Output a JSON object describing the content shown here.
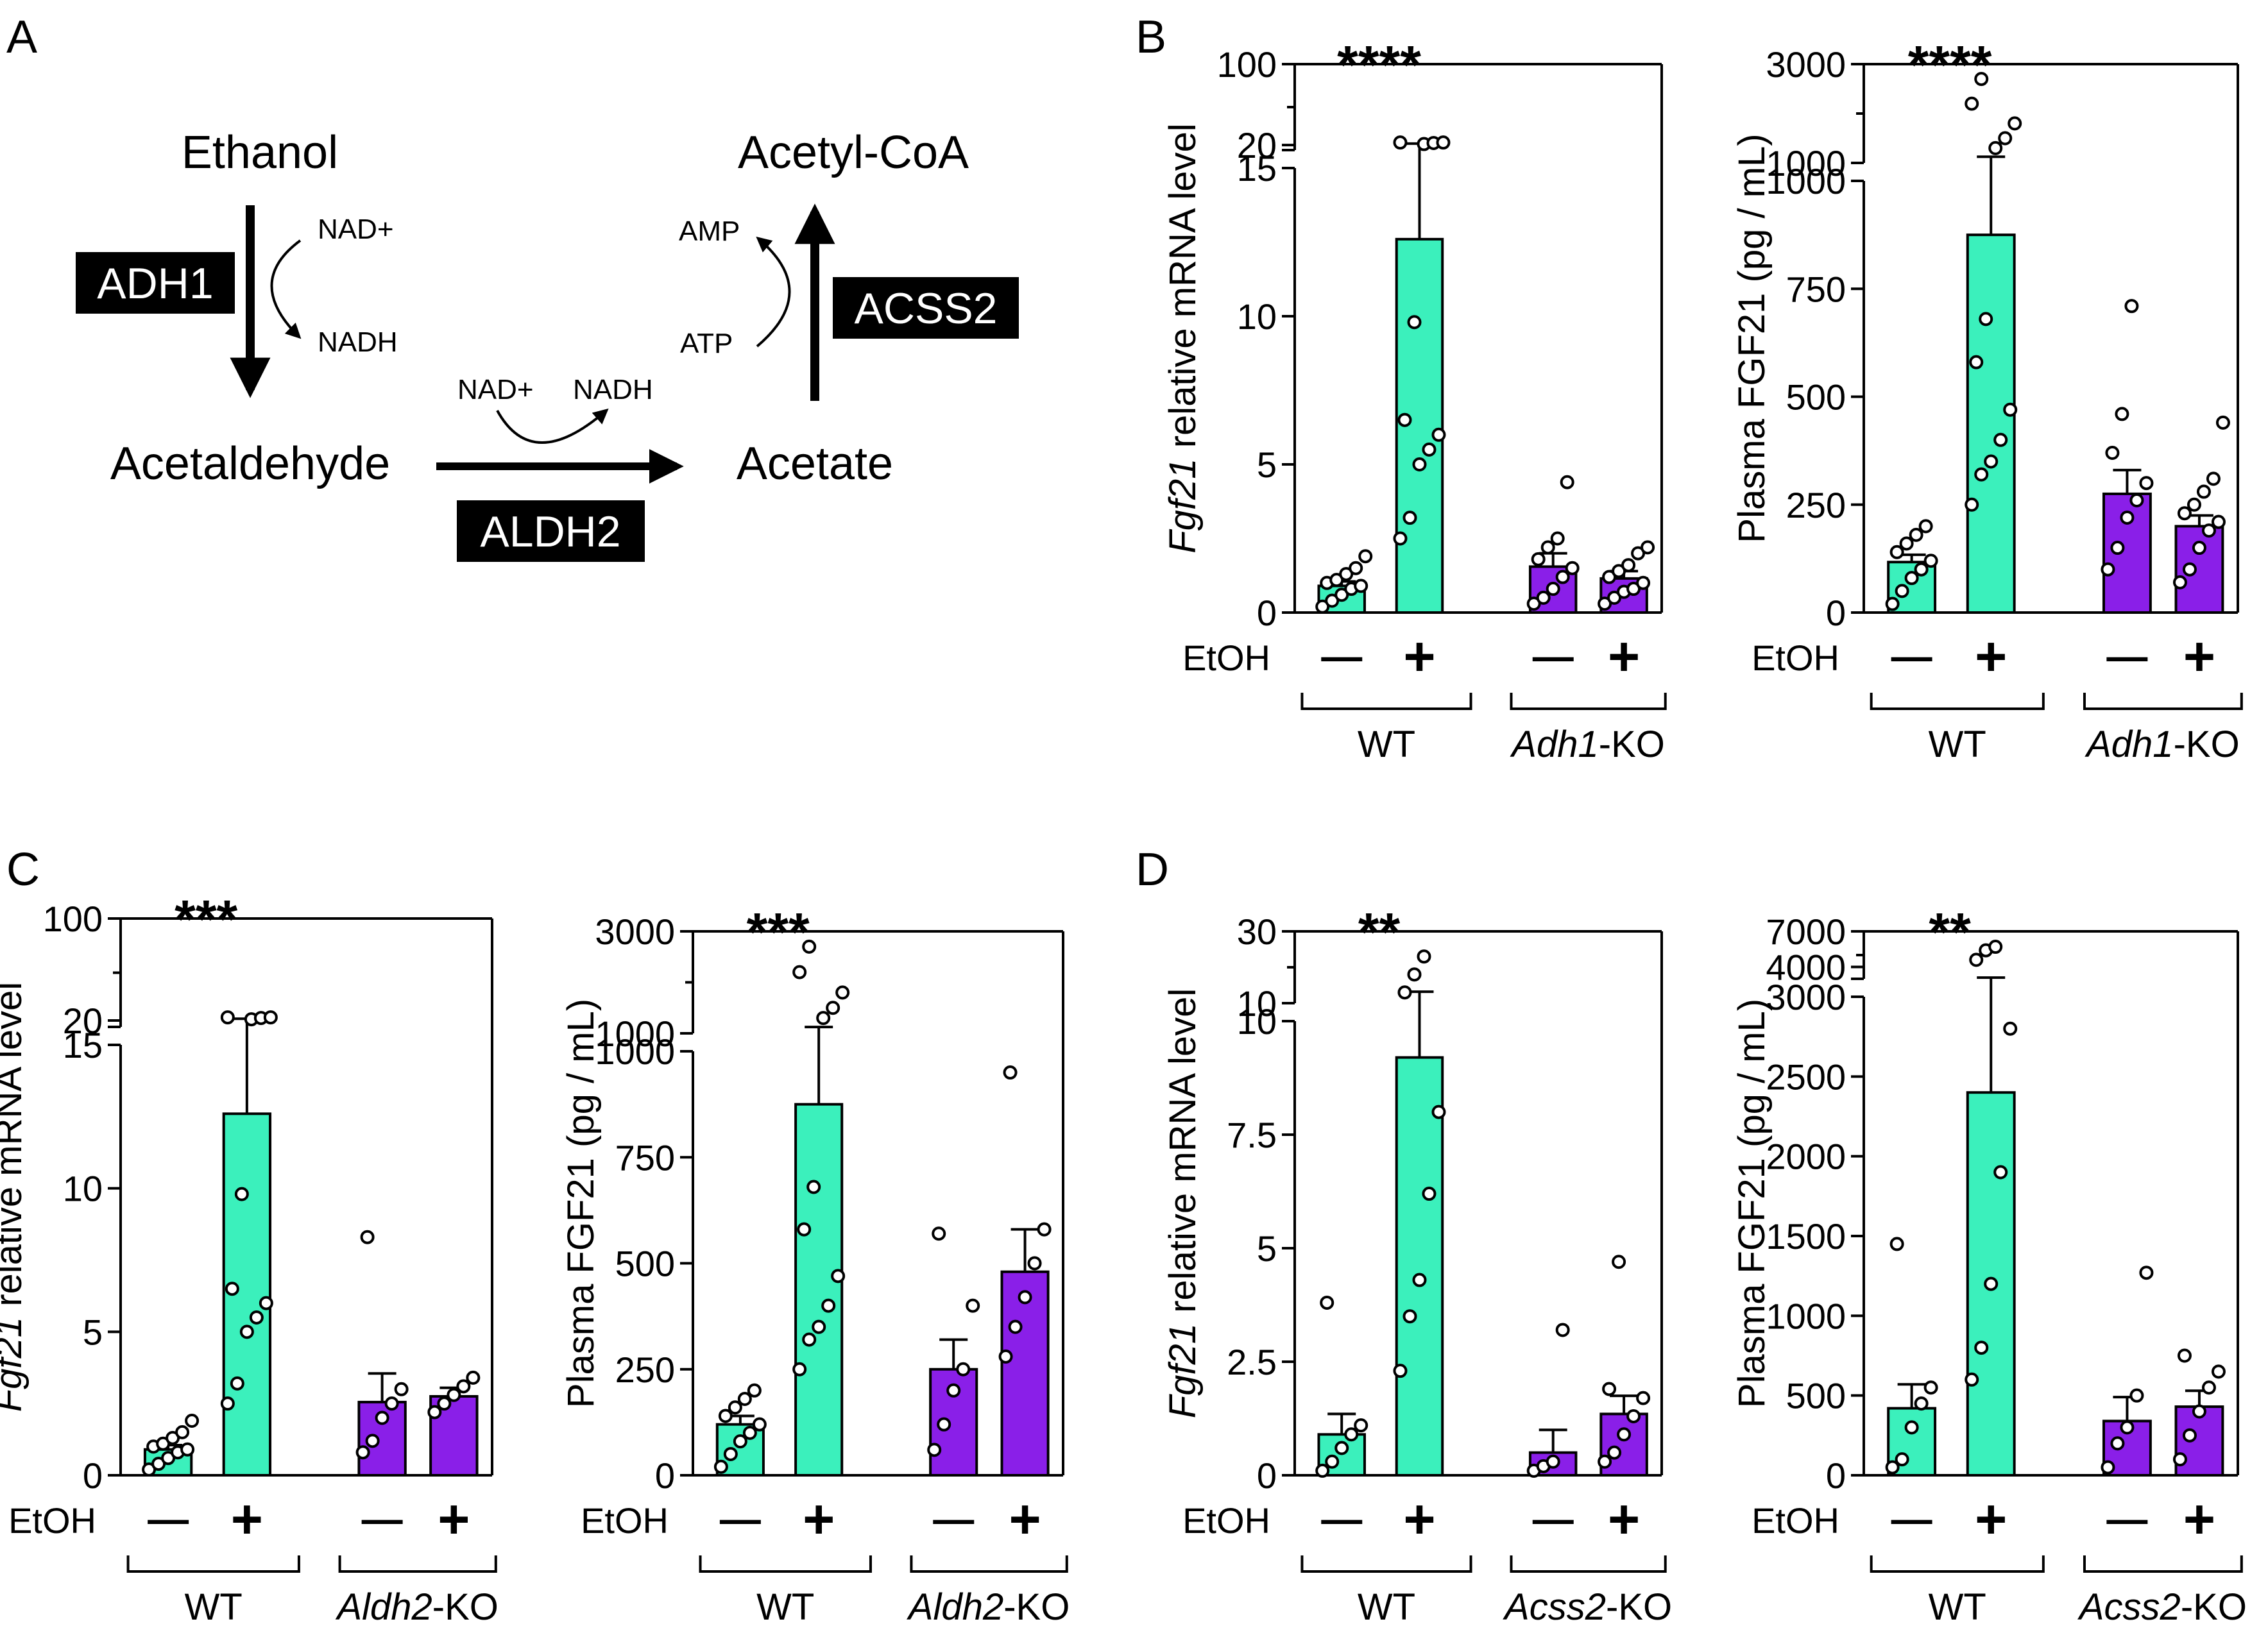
{
  "panel_labels": [
    "A",
    "B",
    "C",
    "D"
  ],
  "pathway": {
    "ethanol": "Ethanol",
    "acetaldehyde": "Acetaldehyde",
    "acetate": "Acetate",
    "acetyl_coa": "Acetyl-CoA",
    "adh1": "ADH1",
    "aldh2": "ALDH2",
    "acss2": "ACSS2",
    "nad_plus": "NAD+",
    "nadh": "NADH",
    "amp": "AMP",
    "atp": "ATP"
  },
  "labels": {
    "etoh": "EtOH",
    "minus": "—",
    "plus": "+",
    "wt": "WT",
    "ko_suffix": "-KO",
    "fgf21_italic": "Fgf21",
    "mrna_suffix": " relative mRNA level",
    "plasma_ylabel": "Plasma FGF21 (pg / mL)"
  },
  "colors": {
    "wt_bar": "#3BF0BC",
    "ko_bar": "#8A1FE8",
    "point_fill": "#ffffff",
    "line": "#000000"
  },
  "chart_data": [
    {
      "id": "B-mrna",
      "panel": "B",
      "type": "bar",
      "ko_gene": "Adh1",
      "ylabel": "Fgf21 relative mRNA level",
      "significance": "****",
      "categories": [
        "WT −",
        "WT +",
        "Adh1-KO −",
        "Adh1-KO +"
      ],
      "values": [
        0.9,
        12.6,
        1.55,
        1.15
      ],
      "errors": [
        0.15,
        8.8,
        0.45,
        0.25
      ],
      "points": [
        [
          0.2,
          0.4,
          0.6,
          0.8,
          0.9,
          1.0,
          1.1,
          1.3,
          1.5,
          1.9
        ],
        [
          2.5,
          3.2,
          5,
          5.5,
          6,
          6.5,
          9.8,
          21,
          22,
          22.5,
          22.5
        ],
        [
          0.3,
          0.5,
          0.8,
          1.2,
          1.5,
          1.8,
          2.2,
          2.5,
          4.4
        ],
        [
          0.3,
          0.5,
          0.7,
          0.8,
          1.0,
          1.2,
          1.4,
          1.6,
          2.0,
          2.2
        ]
      ],
      "axis": {
        "lower": [
          0,
          15
        ],
        "upper": [
          15,
          100
        ],
        "lower_ticks": [
          "0",
          "5",
          "10",
          "15"
        ],
        "upper_ticks": [
          "20",
          "100"
        ]
      }
    },
    {
      "id": "B-plasma",
      "panel": "B",
      "type": "bar",
      "ko_gene": "Adh1",
      "ylabel": "Plasma FGF21 (pg / mL)",
      "significance": "****",
      "categories": [
        "WT −",
        "WT +",
        "Adh1-KO −",
        "Adh1-KO +"
      ],
      "values": [
        117,
        875,
        275,
        200
      ],
      "errors": [
        17,
        250,
        55,
        25
      ],
      "points": [
        [
          20,
          50,
          80,
          100,
          120,
          140,
          160,
          180,
          200
        ],
        [
          250,
          320,
          350,
          400,
          470,
          580,
          680,
          1300,
          1500,
          1800,
          2200,
          2700
        ],
        [
          100,
          150,
          220,
          260,
          300,
          370,
          460,
          710
        ],
        [
          70,
          100,
          150,
          190,
          210,
          230,
          250,
          280,
          310,
          440
        ]
      ],
      "axis": {
        "lower": [
          0,
          1000
        ],
        "upper": [
          1000,
          3000
        ],
        "lower_ticks": [
          "0",
          "250",
          "500",
          "750",
          "1000"
        ],
        "upper_ticks": [
          "1000",
          "3000"
        ]
      }
    },
    {
      "id": "C-mrna",
      "panel": "C",
      "type": "bar",
      "ko_gene": "Aldh2",
      "ylabel": "Fgf21 relative mRNA level",
      "significance": "***",
      "categories": [
        "WT −",
        "WT +",
        "Aldh2-KO −",
        "Aldh2-KO +"
      ],
      "values": [
        0.9,
        12.6,
        2.55,
        2.75
      ],
      "errors": [
        0.15,
        8.8,
        1.0,
        0.3
      ],
      "points": [
        [
          0.2,
          0.4,
          0.6,
          0.8,
          0.9,
          1.0,
          1.1,
          1.3,
          1.5,
          1.9
        ],
        [
          2.5,
          3.2,
          5,
          5.5,
          6,
          6.5,
          9.8,
          21,
          22,
          22.5,
          22.5
        ],
        [
          0.8,
          1.2,
          2.0,
          2.5,
          3.0,
          8.3
        ],
        [
          2.2,
          2.5,
          2.8,
          3.1,
          3.4
        ]
      ],
      "axis": {
        "lower": [
          0,
          15
        ],
        "upper": [
          15,
          100
        ],
        "lower_ticks": [
          "0",
          "5",
          "10",
          "15"
        ],
        "upper_ticks": [
          "20",
          "100"
        ]
      }
    },
    {
      "id": "C-plasma",
      "panel": "C",
      "type": "bar",
      "ko_gene": "Aldh2",
      "ylabel": "Plasma FGF21 (pg / mL)",
      "significance": "***",
      "categories": [
        "WT −",
        "WT +",
        "Aldh2-KO −",
        "Aldh2-KO +"
      ],
      "values": [
        120,
        875,
        250,
        480
      ],
      "errors": [
        20,
        250,
        70,
        100
      ],
      "points": [
        [
          20,
          50,
          80,
          100,
          120,
          140,
          160,
          180,
          200
        ],
        [
          250,
          320,
          350,
          400,
          470,
          580,
          680,
          1300,
          1500,
          1800,
          2200,
          2700
        ],
        [
          60,
          120,
          200,
          250,
          400,
          570
        ],
        [
          280,
          350,
          420,
          500,
          580,
          950
        ]
      ],
      "axis": {
        "lower": [
          0,
          1000
        ],
        "upper": [
          1000,
          3000
        ],
        "lower_ticks": [
          "0",
          "250",
          "500",
          "750",
          "1000"
        ],
        "upper_ticks": [
          "1000",
          "3000"
        ]
      }
    },
    {
      "id": "D-mrna",
      "panel": "D",
      "type": "bar",
      "ko_gene": "Acss2",
      "ylabel": "Fgf21 relative mRNA level",
      "significance": "**",
      "categories": [
        "WT −",
        "WT +",
        "Acss2-KO −",
        "Acss2-KO +"
      ],
      "values": [
        0.9,
        9.2,
        0.5,
        1.35
      ],
      "errors": [
        0.45,
        4.0,
        0.5,
        0.4
      ],
      "points": [
        [
          0.1,
          0.3,
          0.6,
          0.9,
          1.1,
          3.8
        ],
        [
          2.3,
          3.5,
          4.3,
          6.2,
          8.0,
          13,
          18,
          23
        ],
        [
          0.1,
          0.2,
          0.3,
          3.2
        ],
        [
          0.3,
          0.5,
          0.9,
          1.3,
          1.7,
          1.9,
          4.7
        ]
      ],
      "axis": {
        "lower": [
          0,
          10
        ],
        "upper": [
          10,
          30
        ],
        "lower_ticks": [
          "0",
          "2.5",
          "5",
          "7.5",
          "10"
        ],
        "upper_ticks": [
          "10",
          "30"
        ]
      }
    },
    {
      "id": "D-plasma",
      "panel": "D",
      "type": "bar",
      "ko_gene": "Acss2",
      "ylabel": "Plasma FGF21 (pg / mL)",
      "significance": "**",
      "categories": [
        "WT −",
        "WT +",
        "Acss2-KO −",
        "Acss2-KO +"
      ],
      "values": [
        420,
        2400,
        340,
        430
      ],
      "errors": [
        150,
        700,
        150,
        100
      ],
      "points": [
        [
          50,
          100,
          300,
          450,
          550,
          1450
        ],
        [
          600,
          800,
          1200,
          1900,
          2800,
          4600,
          5400,
          5700
        ],
        [
          50,
          200,
          300,
          500,
          1270
        ],
        [
          100,
          250,
          400,
          550,
          650,
          750
        ]
      ],
      "axis": {
        "lower": [
          0,
          3000
        ],
        "upper": [
          3000,
          7000
        ],
        "lower_ticks": [
          "0",
          "500",
          "1000",
          "1500",
          "2000",
          "2500",
          "3000"
        ],
        "upper_ticks": [
          "4000",
          "7000"
        ]
      }
    }
  ]
}
